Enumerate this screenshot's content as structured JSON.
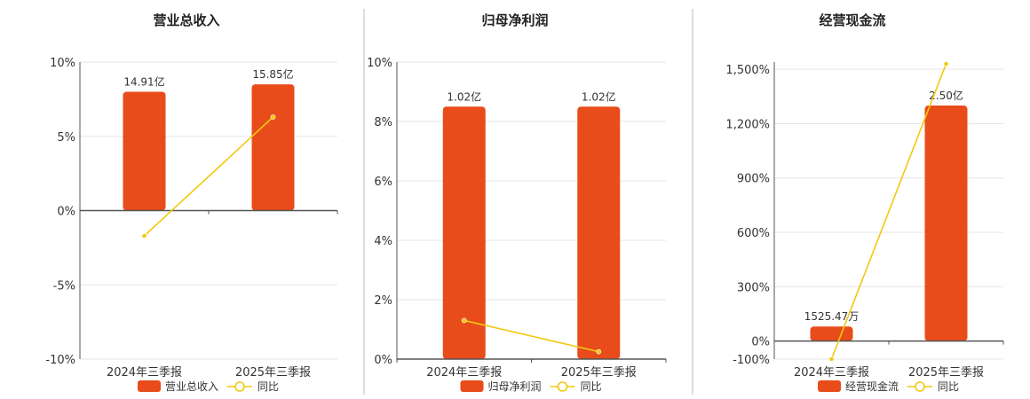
{
  "colors": {
    "bar": "#e84c1a",
    "line": "#f2c811",
    "grid": "#e6e6e6",
    "axis": "#555555",
    "divider": "#bbbbbb"
  },
  "chart_data": [
    {
      "type": "bar",
      "title": "营业总收入",
      "categories": [
        "2024年三季报",
        "2025年三季报"
      ],
      "ylim": [
        -10,
        10
      ],
      "yticks": [
        10,
        5,
        0,
        -5,
        -10
      ],
      "ytick_labels": [
        "10%",
        "5%",
        "0%",
        "-5%",
        "-10%"
      ],
      "series": [
        {
          "name": "营业总收入",
          "kind": "bar",
          "values": [
            8,
            8.5
          ],
          "labels": [
            "14.91亿",
            "15.85亿"
          ]
        },
        {
          "name": "同比",
          "kind": "line",
          "values": [
            -1.7,
            6.3
          ]
        }
      ],
      "grid": true,
      "legend": "bottom"
    },
    {
      "type": "bar",
      "title": "归母净利润",
      "categories": [
        "2024年三季报",
        "2025年三季报"
      ],
      "ylim": [
        0,
        10
      ],
      "yticks": [
        10,
        8,
        6,
        4,
        2,
        0
      ],
      "ytick_labels": [
        "10%",
        "8%",
        "6%",
        "4%",
        "2%",
        "0%"
      ],
      "series": [
        {
          "name": "归母净利润",
          "kind": "bar",
          "values": [
            8.5,
            8.5
          ],
          "labels": [
            "1.02亿",
            "1.02亿"
          ]
        },
        {
          "name": "同比",
          "kind": "line",
          "values": [
            1.3,
            0.25
          ]
        }
      ],
      "grid": true,
      "legend": "bottom"
    },
    {
      "type": "bar",
      "title": "经营现金流",
      "categories": [
        "2024年三季报",
        "2025年三季报"
      ],
      "ylim": [
        -100,
        1540
      ],
      "yticks": [
        1500,
        1200,
        900,
        600,
        300,
        0,
        -100
      ],
      "ytick_labels": [
        "1,500%",
        "1,200%",
        "900%",
        "600%",
        "300%",
        "0%",
        "-100%"
      ],
      "series": [
        {
          "name": "经营现金流",
          "kind": "bar",
          "values": [
            80,
            1300
          ],
          "labels": [
            "1525.47万",
            "2.50亿"
          ]
        },
        {
          "name": "同比",
          "kind": "line",
          "values": [
            -100,
            1530
          ]
        }
      ],
      "grid": true,
      "legend": "bottom"
    }
  ]
}
